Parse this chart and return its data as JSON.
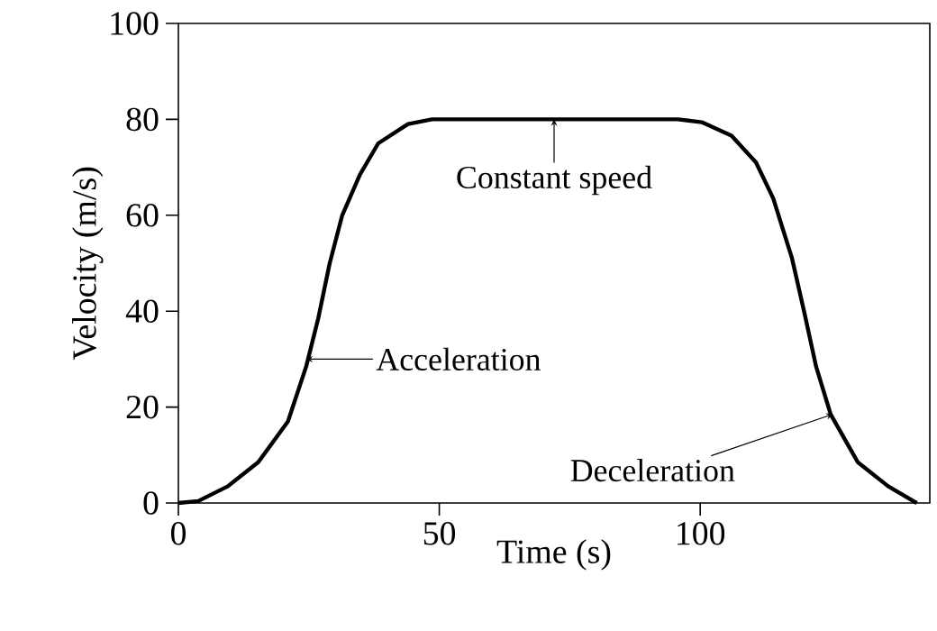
{
  "chart_data": {
    "type": "line",
    "xlabel": "Time (s)",
    "ylabel": "Velocity (m/s)",
    "x": [
      0,
      3.8,
      9.5,
      15.3,
      21,
      24.5,
      26.8,
      29,
      31.4,
      34.8,
      38.3,
      44,
      48.6,
      95.7,
      100.3,
      106,
      110.7,
      114,
      117.6,
      119.9,
      122.2,
      125,
      130.2,
      136,
      141.5
    ],
    "series": [
      {
        "color": "#000000",
        "values": [
          0,
          0.4,
          3.5,
          8.5,
          17,
          28.5,
          38.5,
          50,
          60,
          68.5,
          75,
          79,
          80,
          80,
          79.4,
          76.6,
          71,
          63.5,
          51,
          40,
          28.5,
          18.5,
          8.5,
          3.5,
          0
        ]
      }
    ],
    "xlim": [
      0,
      144
    ],
    "ylim": [
      0,
      100
    ],
    "xticks": [
      0,
      50,
      100
    ],
    "yticks": [
      0,
      20,
      40,
      60,
      80,
      100
    ],
    "marker": "none",
    "line_style": "solid",
    "annotations": [
      {
        "text": "Constant speed",
        "x": 72,
        "y": 80
      },
      {
        "text": "Acceleration",
        "x": 24.5,
        "y": 30
      },
      {
        "text": "Deceleration",
        "x": 125.4,
        "y": 18.5
      }
    ]
  }
}
